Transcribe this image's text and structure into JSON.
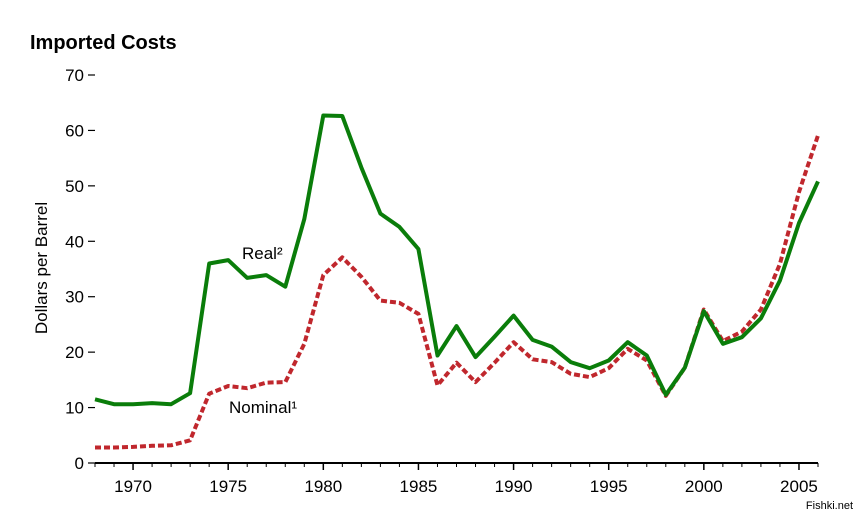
{
  "chart_data": {
    "type": "line",
    "title": "Imported Costs",
    "ylabel": "Dollars per Barrel",
    "xlabel": "",
    "xlim": [
      1968,
      2006
    ],
    "ylim": [
      0,
      70
    ],
    "yticks": [
      0,
      10,
      20,
      30,
      40,
      50,
      60,
      70
    ],
    "xticks": [
      1970,
      1975,
      1980,
      1985,
      1990,
      1995,
      2000,
      2005
    ],
    "grid": false,
    "legend": "none",
    "x": [
      1968,
      1969,
      1970,
      1971,
      1972,
      1973,
      1974,
      1975,
      1976,
      1977,
      1978,
      1979,
      1980,
      1981,
      1982,
      1983,
      1984,
      1985,
      1986,
      1987,
      1988,
      1989,
      1990,
      1991,
      1992,
      1993,
      1994,
      1995,
      1996,
      1997,
      1998,
      1999,
      2000,
      2001,
      2002,
      2003,
      2004,
      2005,
      2006
    ],
    "series": [
      {
        "name": "Real²",
        "color": "#0a7d0a",
        "style": "solid",
        "values": [
          11.5,
          10.6,
          10.6,
          10.8,
          10.6,
          12.6,
          36.0,
          36.6,
          33.4,
          33.9,
          31.8,
          44.0,
          62.7,
          62.6,
          53.3,
          45.0,
          42.6,
          38.6,
          19.4,
          24.7,
          19.1,
          22.8,
          26.6,
          22.2,
          21.0,
          18.2,
          17.1,
          18.5,
          21.8,
          19.4,
          12.3,
          17.2,
          27.4,
          21.5,
          22.7,
          26.1,
          32.9,
          43.3,
          50.8
        ]
      },
      {
        "name": "Nominal¹",
        "color": "#c0272d",
        "style": "dashed",
        "values": [
          2.8,
          2.8,
          2.9,
          3.1,
          3.2,
          4.1,
          12.5,
          13.9,
          13.5,
          14.5,
          14.6,
          21.5,
          33.9,
          37.1,
          33.6,
          29.3,
          28.9,
          26.9,
          14.0,
          18.1,
          14.6,
          18.1,
          21.8,
          18.7,
          18.2,
          16.1,
          15.5,
          17.1,
          20.6,
          18.5,
          12.1,
          17.2,
          27.7,
          22.0,
          23.7,
          27.7,
          35.9,
          48.9,
          59.1
        ]
      }
    ]
  },
  "watermark": "Fishki.net"
}
